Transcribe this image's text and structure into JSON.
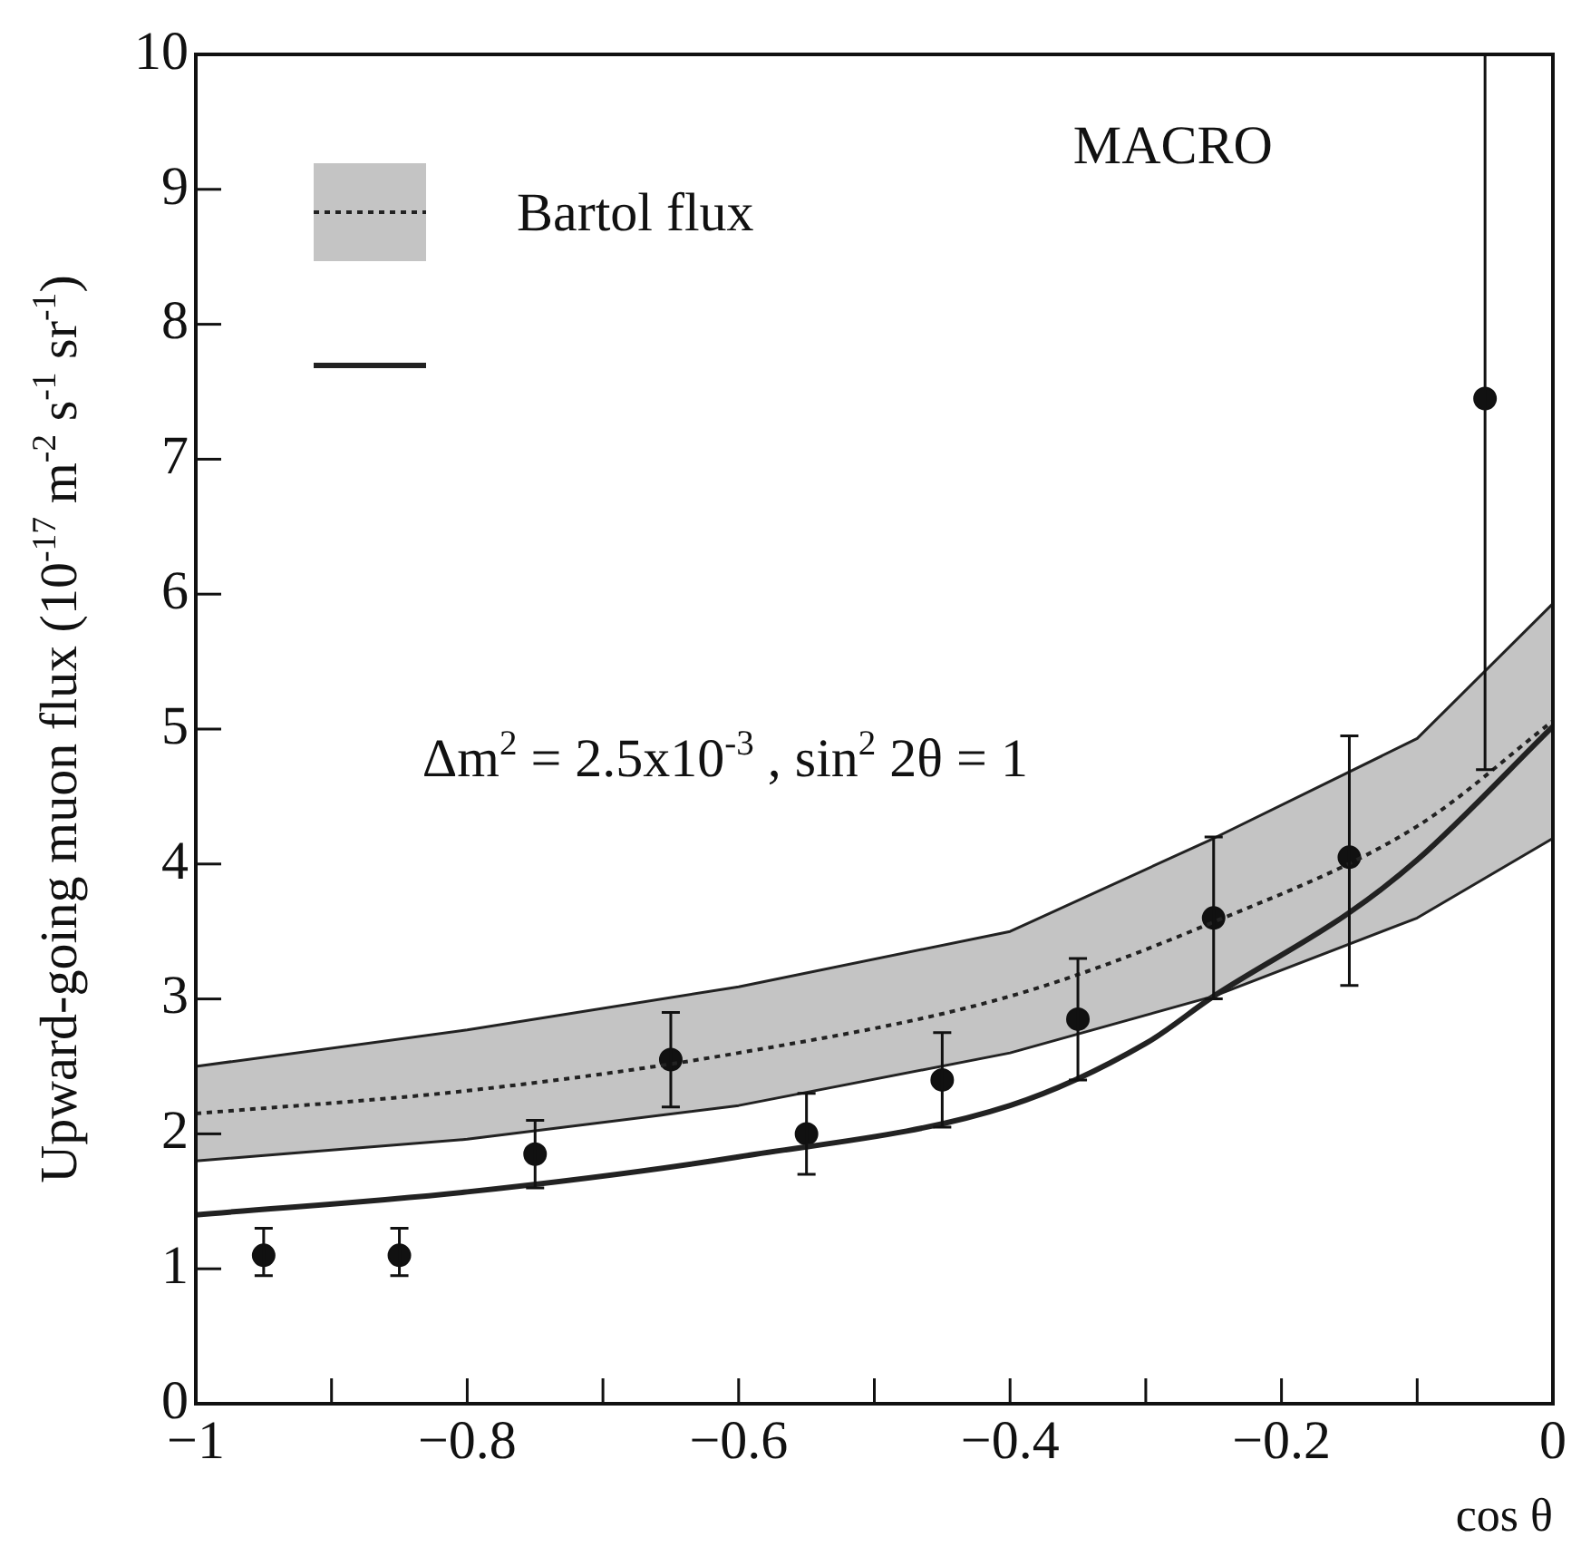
{
  "chart_data": {
    "type": "scatter",
    "xlabel": "cos θ",
    "ylabel": "Upward-going muon flux (10$^{-17}$ m$^{-2}$ s$^{-1}$ sr$^{-1}$)",
    "annotations": [
      "MACRO",
      "Δm$^{2}$ = 2.5x10$^{-3}$ , sin$^{2}$ 2θ = 1"
    ],
    "xlim": [
      -1,
      0
    ],
    "ylim": [
      0,
      10
    ],
    "xticks": [
      {
        "value": -1,
        "label": "−1"
      },
      {
        "value": -0.9,
        "label": null
      },
      {
        "value": -0.8,
        "label": "−0.8"
      },
      {
        "value": -0.7,
        "label": null
      },
      {
        "value": -0.6,
        "label": "−0.6"
      },
      {
        "value": -0.5,
        "label": null
      },
      {
        "value": -0.4,
        "label": "−0.4"
      },
      {
        "value": -0.3,
        "label": null
      },
      {
        "value": -0.2,
        "label": "−0.2"
      },
      {
        "value": -0.1,
        "label": null
      },
      {
        "value": 0,
        "label": "0"
      }
    ],
    "yticks": [
      0,
      1,
      2,
      3,
      4,
      5,
      6,
      7,
      8,
      9,
      10
    ],
    "grid": false,
    "legend": "top left",
    "series": [
      {
        "type": "line",
        "name": "Bartol flux",
        "color": "#222222",
        "line_style": "dotted",
        "marker": "none",
        "x": [
          -1,
          -0.8,
          -0.6,
          -0.4,
          -0.25,
          -0.1,
          0
        ],
        "values": [
          2.15,
          2.32,
          2.6,
          3.02,
          3.57,
          4.28,
          5.06
        ],
        "lower": [
          1.8,
          1.96,
          2.21,
          2.6,
          3.02,
          3.6,
          4.19
        ],
        "upper": [
          2.5,
          2.77,
          3.09,
          3.5,
          4.19,
          4.93,
          5.93
        ]
      },
      {
        "type": "line",
        "color": "#222222",
        "line_style": "solid",
        "marker": "none",
        "x": [
          -1,
          -0.8,
          -0.6,
          -0.4,
          -0.3,
          -0.25,
          -0.15,
          -0.1,
          0
        ],
        "values": [
          1.4,
          1.57,
          1.83,
          2.21,
          2.67,
          3.02,
          3.64,
          4.03,
          5.02
        ]
      },
      {
        "color": "#111111",
        "marker": "circle",
        "x": [
          -0.95,
          -0.85,
          -0.75,
          -0.65,
          -0.55,
          -0.45,
          -0.35,
          -0.25,
          -0.15,
          -0.05
        ],
        "values": [
          1.1,
          1.1,
          1.85,
          2.55,
          2.0,
          2.4,
          2.85,
          3.6,
          4.05,
          7.45
        ],
        "errors": [
          [
            0.95,
            1.3
          ],
          [
            0.95,
            1.3
          ],
          [
            1.6,
            2.1
          ],
          [
            2.2,
            2.9
          ],
          [
            1.7,
            2.3
          ],
          [
            2.05,
            2.75
          ],
          [
            2.4,
            3.3
          ],
          [
            3.0,
            4.2
          ],
          [
            3.1,
            4.95
          ],
          [
            4.7,
            10
          ]
        ]
      }
    ]
  }
}
